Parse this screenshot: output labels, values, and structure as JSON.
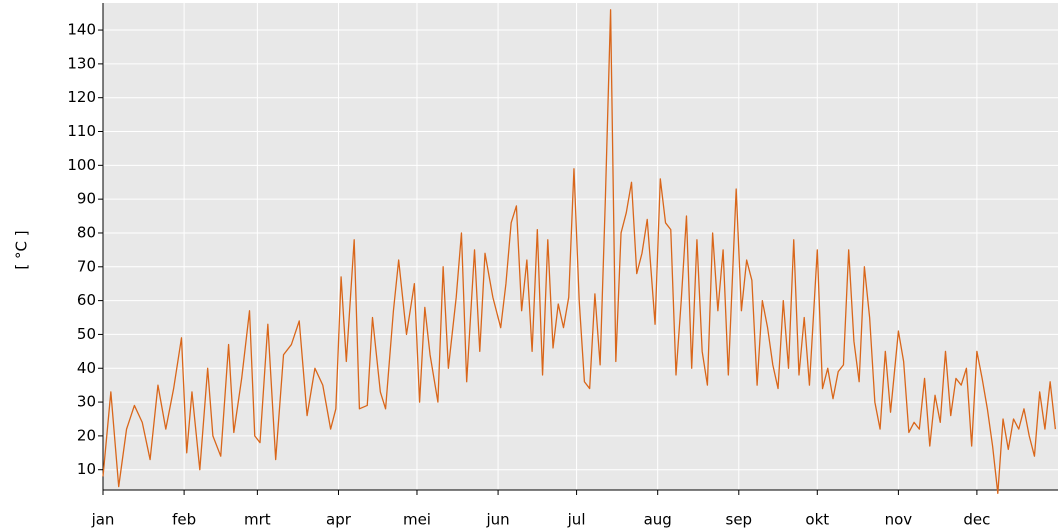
{
  "chart_data": {
    "type": "line",
    "y_label": "[ °C ]",
    "x": [
      0,
      3,
      6,
      9,
      12,
      15,
      18,
      21,
      24,
      27,
      30,
      32,
      34,
      37,
      40,
      42,
      45,
      48,
      50,
      53,
      56,
      58,
      60,
      63,
      66,
      69,
      72,
      75,
      78,
      81,
      84,
      87,
      89,
      91,
      93,
      96,
      98,
      101,
      103,
      106,
      108,
      111,
      113,
      116,
      119,
      121,
      123,
      125,
      128,
      130,
      132,
      135,
      137,
      139,
      142,
      144,
      146,
      149,
      152,
      154,
      156,
      158,
      160,
      162,
      164,
      166,
      168,
      170,
      172,
      174,
      176,
      178,
      180,
      182,
      184,
      186,
      188,
      190,
      192,
      194,
      196,
      198,
      200,
      202,
      204,
      206,
      208,
      211,
      213,
      215,
      217,
      219,
      221,
      223,
      225,
      227,
      229,
      231,
      233,
      235,
      237,
      239,
      242,
      244,
      246,
      248,
      250,
      252,
      254,
      256,
      258,
      260,
      262,
      264,
      266,
      268,
      270,
      273,
      275,
      277,
      279,
      281,
      283,
      285,
      287,
      289,
      291,
      293,
      295,
      297,
      299,
      301,
      304,
      306,
      308,
      310,
      312,
      314,
      316,
      318,
      320,
      322,
      324,
      326,
      328,
      330,
      332,
      334,
      336,
      338,
      340,
      342,
      344,
      346,
      348,
      350,
      352,
      354,
      356,
      358,
      360,
      362,
      364
    ],
    "series": [
      {
        "color": "#d9661a",
        "values": [
          8,
          33,
          5,
          22,
          29,
          24,
          13,
          35,
          22,
          34,
          49,
          15,
          33,
          10,
          40,
          20,
          14,
          47,
          21,
          37,
          57,
          20,
          18,
          53,
          13,
          44,
          47,
          54,
          26,
          40,
          35,
          22,
          28,
          67,
          42,
          78,
          28,
          29,
          55,
          33,
          28,
          57,
          72,
          50,
          65,
          30,
          58,
          44,
          30,
          70,
          40,
          61,
          80,
          36,
          75,
          45,
          74,
          61,
          52,
          65,
          83,
          88,
          57,
          72,
          45,
          81,
          38,
          78,
          46,
          59,
          52,
          61,
          99,
          60,
          36,
          34,
          62,
          41,
          90,
          146,
          42,
          80,
          86,
          95,
          68,
          74,
          84,
          53,
          96,
          83,
          81,
          38,
          60,
          85,
          40,
          78,
          45,
          35,
          80,
          57,
          75,
          38,
          93,
          57,
          72,
          66,
          35,
          60,
          52,
          41,
          34,
          60,
          40,
          78,
          38,
          55,
          35,
          75,
          34,
          40,
          31,
          39,
          41,
          75,
          48,
          36,
          70,
          55,
          30,
          22,
          45,
          27,
          51,
          42,
          21,
          24,
          22,
          37,
          17,
          32,
          24,
          45,
          26,
          37,
          35,
          40,
          17,
          45,
          37,
          28,
          17,
          3,
          25,
          16,
          25,
          22,
          28,
          20,
          14,
          33,
          22,
          36,
          22
        ]
      }
    ],
    "xlim": [
      0,
      365
    ],
    "xticks": [
      {
        "value": 0,
        "label": "jan"
      },
      {
        "value": 31,
        "label": "feb"
      },
      {
        "value": 59,
        "label": "mrt"
      },
      {
        "value": 90,
        "label": "apr"
      },
      {
        "value": 120,
        "label": "mei"
      },
      {
        "value": 151,
        "label": "jun"
      },
      {
        "value": 181,
        "label": "jul"
      },
      {
        "value": 212,
        "label": "aug"
      },
      {
        "value": 243,
        "label": "sep"
      },
      {
        "value": 273,
        "label": "okt"
      },
      {
        "value": 304,
        "label": "nov"
      },
      {
        "value": 334,
        "label": "dec"
      }
    ],
    "ylim": [
      4,
      148
    ],
    "yticks": [
      10,
      20,
      30,
      40,
      50,
      60,
      70,
      80,
      90,
      100,
      110,
      120,
      130,
      140
    ],
    "grid": true
  }
}
